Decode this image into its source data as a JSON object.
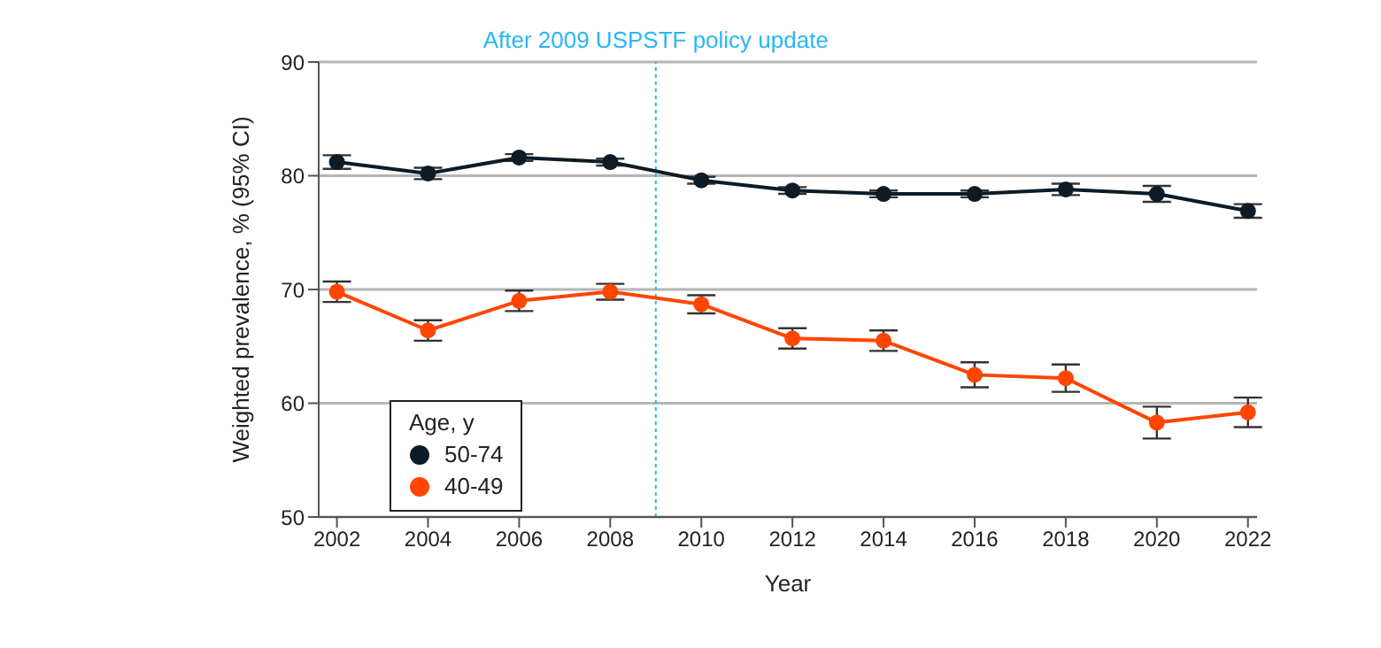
{
  "chart_data": {
    "type": "line",
    "xlabel": "Year",
    "ylabel": "Weighted prevalence, % (95% CI)",
    "legend_title": "Age, y",
    "x": [
      2002,
      2004,
      2006,
      2008,
      2010,
      2012,
      2014,
      2016,
      2018,
      2020,
      2022
    ],
    "series": [
      {
        "name": "50-74",
        "color": "#0d1b26",
        "values": [
          81.2,
          80.2,
          81.6,
          81.2,
          79.6,
          78.7,
          78.4,
          78.4,
          78.8,
          78.4,
          76.9
        ],
        "errors": [
          0.6,
          0.5,
          0.3,
          0.3,
          0.3,
          0.3,
          0.3,
          0.3,
          0.5,
          0.7,
          0.6
        ]
      },
      {
        "name": "40-49",
        "color": "#ff4500",
        "values": [
          69.8,
          66.4,
          69.0,
          69.8,
          68.7,
          65.7,
          65.5,
          62.5,
          62.2,
          58.3,
          59.2
        ],
        "errors": [
          0.9,
          0.9,
          0.9,
          0.7,
          0.8,
          0.9,
          0.9,
          1.1,
          1.2,
          1.4,
          1.3
        ]
      }
    ],
    "xlim": [
      2001.6,
      2022.2
    ],
    "xticks": [
      2002,
      2004,
      2006,
      2008,
      2010,
      2012,
      2014,
      2016,
      2018,
      2020,
      2022
    ],
    "ylim": [
      50,
      90
    ],
    "yticks": [
      50,
      60,
      70,
      80,
      90
    ],
    "ref_lines": [
      {
        "axis": "x",
        "value": 2009,
        "label": "After 2009 USPSTF policy update",
        "color": "#29b6f6",
        "line_style": "dotted"
      }
    ],
    "grid": "y",
    "legend": "bottom left",
    "marker": "circle",
    "line_style": "solid"
  }
}
